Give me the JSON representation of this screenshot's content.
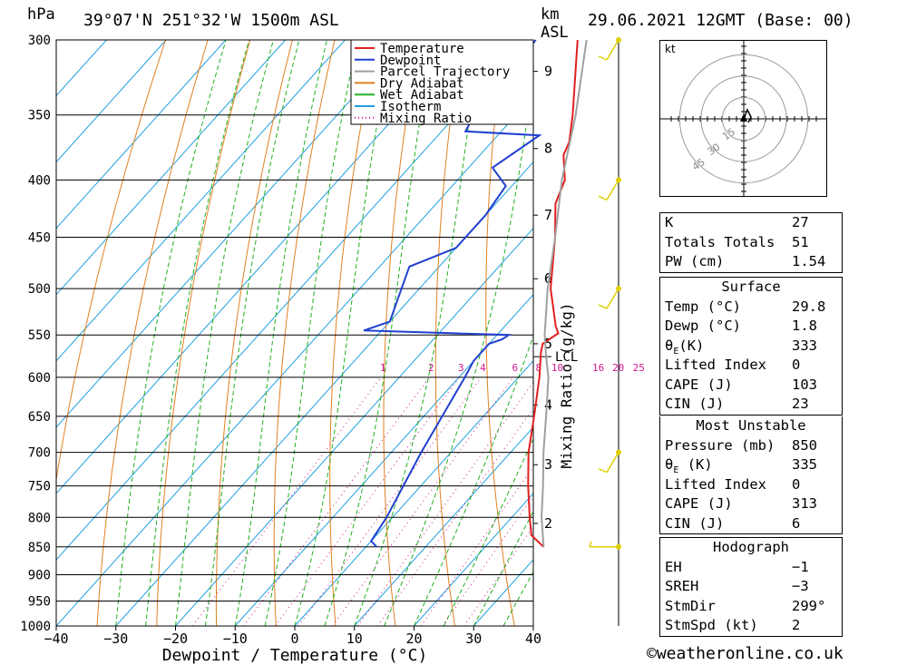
{
  "header": {
    "pressure_unit": "hPa",
    "location": "39°07'N  251°32'W  1500m  ASL",
    "height_unit_km": "km",
    "height_unit_asl": "ASL",
    "datetime": "29.06.2021  12GMT  (Base: 00)"
  },
  "colors": {
    "temperature": "#e02020",
    "dewpoint": "#2040d0",
    "parcel": "#a0a0a0",
    "dry_adiabat": "#e08020",
    "wet_adiabat": "#20b020",
    "isotherm": "#20a0e0",
    "mixing_ratio": "#d01890",
    "wind": "#e0d000"
  },
  "chart_data": {
    "type": "line",
    "title": "Skew-T log-P diagram",
    "xlabel": "Dewpoint / Temperature (°C)",
    "ylabel": "hPa",
    "y2label": "Mixing Ratio (g/kg)",
    "xlim": [
      -40,
      40
    ],
    "ylim": [
      1000,
      300
    ],
    "x_ticks": [
      "−40",
      "−30",
      "−20",
      "−10",
      "0",
      "10",
      "20",
      "30",
      "40"
    ],
    "x_tick_values": [
      -40,
      -30,
      -20,
      -10,
      0,
      10,
      20,
      30,
      40
    ],
    "pressure_levels": [
      300,
      350,
      400,
      450,
      500,
      550,
      600,
      650,
      700,
      750,
      800,
      850,
      900,
      950,
      1000
    ],
    "km_ticks": [
      {
        "label": "9",
        "p": 320
      },
      {
        "label": "8",
        "p": 375
      },
      {
        "label": "7",
        "p": 430
      },
      {
        "label": "6",
        "p": 490
      },
      {
        "label": "5",
        "p": 560
      },
      {
        "label": "4",
        "p": 635
      },
      {
        "label": "3",
        "p": 718
      },
      {
        "label": "2",
        "p": 810
      }
    ],
    "lcl": {
      "label": "LCL",
      "p": 575
    },
    "mixing_ratio_labels": [
      "1",
      "2",
      "3",
      "4",
      "6",
      "8",
      "10",
      "16",
      "20",
      "25"
    ],
    "mixing_ratio_values": [
      1,
      2,
      3,
      4,
      6,
      8,
      10,
      16,
      20,
      25
    ],
    "mixing_label_p": 597,
    "legend": [
      "Temperature",
      "Dewpoint",
      "Parcel Trajectory",
      "Dry Adiabat",
      "Wet Adiabat",
      "Isotherm",
      "Mixing Ratio"
    ],
    "series": [
      {
        "name": "Temperature",
        "points": [
          {
            "p": 850,
            "t": 29.8
          },
          {
            "p": 830,
            "t": 26.0
          },
          {
            "p": 800,
            "t": 23.0
          },
          {
            "p": 750,
            "t": 18.0
          },
          {
            "p": 700,
            "t": 13.0
          },
          {
            "p": 650,
            "t": 8.5
          },
          {
            "p": 600,
            "t": 3.5
          },
          {
            "p": 570,
            "t": 0.0
          },
          {
            "p": 560,
            "t": -1.0
          },
          {
            "p": 548,
            "t": 0.0
          },
          {
            "p": 540,
            "t": -1.5
          },
          {
            "p": 500,
            "t": -8.0
          },
          {
            "p": 450,
            "t": -15.0
          },
          {
            "p": 420,
            "t": -20.0
          },
          {
            "p": 400,
            "t": -22.0
          },
          {
            "p": 380,
            "t": -26.0
          },
          {
            "p": 370,
            "t": -27.0
          },
          {
            "p": 350,
            "t": -30.5
          },
          {
            "p": 300,
            "t": -41.0
          }
        ]
      },
      {
        "name": "Dewpoint",
        "points": [
          {
            "p": 850,
            "t": 1.8
          },
          {
            "p": 840,
            "t": 0.0
          },
          {
            "p": 800,
            "t": -1.0
          },
          {
            "p": 700,
            "t": -5.0
          },
          {
            "p": 600,
            "t": -9.0
          },
          {
            "p": 580,
            "t": -10.0
          },
          {
            "p": 560,
            "t": -10.0
          },
          {
            "p": 555,
            "t": -8.5
          },
          {
            "p": 550,
            "t": -8.0
          },
          {
            "p": 545,
            "t": -33.0
          },
          {
            "p": 535,
            "t": -30.0
          },
          {
            "p": 500,
            "t": -33.0
          },
          {
            "p": 478,
            "t": -35.0
          },
          {
            "p": 460,
            "t": -30.0
          },
          {
            "p": 430,
            "t": -30.0
          },
          {
            "p": 405,
            "t": -31.0
          },
          {
            "p": 390,
            "t": -36.0
          },
          {
            "p": 365,
            "t": -33.0
          },
          {
            "p": 362,
            "t": -46.0
          },
          {
            "p": 350,
            "t": -47.0
          },
          {
            "p": 300,
            "t": -48.0
          }
        ]
      },
      {
        "name": "Parcel Trajectory",
        "points": [
          {
            "p": 850,
            "t": 29.8
          },
          {
            "p": 800,
            "t": 25.0
          },
          {
            "p": 750,
            "t": 20.5
          },
          {
            "p": 700,
            "t": 15.5
          },
          {
            "p": 650,
            "t": 10.5
          },
          {
            "p": 600,
            "t": 5.0
          },
          {
            "p": 575,
            "t": 1.5
          },
          {
            "p": 550,
            "t": -2.0
          },
          {
            "p": 500,
            "t": -8.5
          },
          {
            "p": 450,
            "t": -15.0
          },
          {
            "p": 400,
            "t": -22.5
          },
          {
            "p": 350,
            "t": -30.0
          },
          {
            "p": 300,
            "t": -39.5
          }
        ]
      }
    ],
    "wind_barbs": [
      {
        "p": 300,
        "label": "300 hPa"
      },
      {
        "p": 400,
        "label": "400 hPa"
      },
      {
        "p": 500,
        "label": "500 hPa"
      },
      {
        "p": 700,
        "label": "700 hPa"
      },
      {
        "p": 850,
        "label": "850 hPa"
      }
    ]
  },
  "hodograph": {
    "unit_label": "kt",
    "ring_labels": [
      "15",
      "30",
      "45"
    ],
    "ring_values": [
      15,
      30,
      45
    ]
  },
  "indices": {
    "rows": [
      {
        "label": "K",
        "value": "27"
      },
      {
        "label": "Totals Totals",
        "value": "51"
      },
      {
        "label": "PW (cm)",
        "value": "1.54"
      }
    ]
  },
  "surface": {
    "title": "Surface",
    "temp_label": "Temp (°C)",
    "temp_value": "29.8",
    "dewp_label": "Dewp (°C)",
    "dewp_value": "1.8",
    "theta_e_sym": "θ",
    "theta_e_sub": "E",
    "theta_e_unit": "(K)",
    "theta_e_value": "333",
    "li_label": "Lifted Index",
    "li_value": "0",
    "cape_label": "CAPE (J)",
    "cape_value": "103",
    "cin_label": "CIN (J)",
    "cin_value": "23"
  },
  "most_unstable": {
    "title": "Most Unstable",
    "pressure_label": "Pressure (mb)",
    "pressure_value": "850",
    "theta_e_sym": "θ",
    "theta_e_sub": "E",
    "theta_e_unit": " (K)",
    "theta_e_value": "335",
    "li_label": "Lifted Index",
    "li_value": "0",
    "cape_label": "CAPE (J)",
    "cape_value": "313",
    "cin_label": "CIN (J)",
    "cin_value": "6"
  },
  "hodograph_table": {
    "title": "Hodograph",
    "rows": [
      {
        "label": "EH",
        "value": "−1"
      },
      {
        "label": "SREH",
        "value": "−3"
      },
      {
        "label": "StmDir",
        "value": "299°"
      },
      {
        "label": "StmSpd (kt)",
        "value": "2"
      }
    ]
  },
  "footer": {
    "copyright": "©weatheronline.co.uk"
  }
}
